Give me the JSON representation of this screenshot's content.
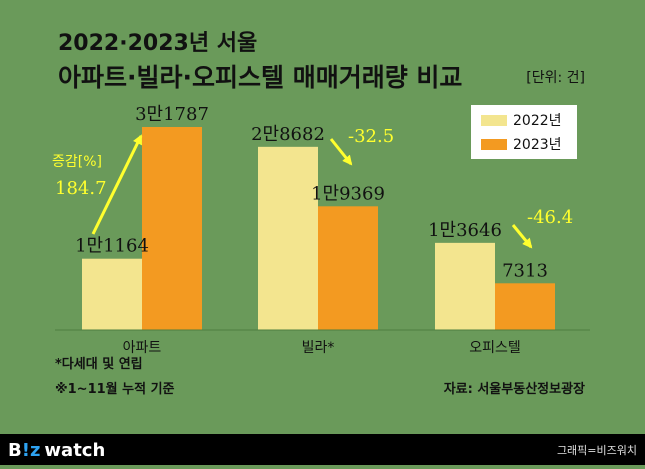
{
  "header": {
    "title_line1": "2022·2023년 서울",
    "title_line2": "아파트·빌라·오피스텔 매매거래량 비교",
    "unit": "[단위: 건]"
  },
  "legend": {
    "position": "top-right"
  },
  "notes": {
    "villa_note": "*다세대 및 연립",
    "period_note": "※1~11월 누적 기준",
    "source": "자료: 서울부동산정보광장"
  },
  "footer": {
    "logo_b": "B",
    "logo_iz": "!z",
    "logo_watch": "watch",
    "credit": "그래픽=비즈워치"
  },
  "colors": {
    "background": "#6a9a5a",
    "series_2022": "#f3e58f",
    "series_2023": "#f39a21",
    "annotation": "#ffff2e",
    "text": "#111111"
  },
  "chart_data": {
    "type": "bar",
    "categories": [
      "아파트",
      "빌라*",
      "오피스텔"
    ],
    "series": [
      {
        "name": "2022년",
        "values": [
          11164,
          28682,
          13646
        ],
        "labels": [
          "1만1164",
          "2만8682",
          "1만3646"
        ]
      },
      {
        "name": "2023년",
        "values": [
          31787,
          19369,
          7313
        ],
        "labels": [
          "3만1787",
          "1만9369",
          "7313"
        ]
      }
    ],
    "change_label_title": "증감[%]",
    "change_pct": [
      184.7,
      -32.5,
      -46.4
    ],
    "change_labels": [
      "184.7",
      "-32.5",
      "-46.4"
    ],
    "ylim": [
      0,
      31787
    ],
    "grid": false
  }
}
